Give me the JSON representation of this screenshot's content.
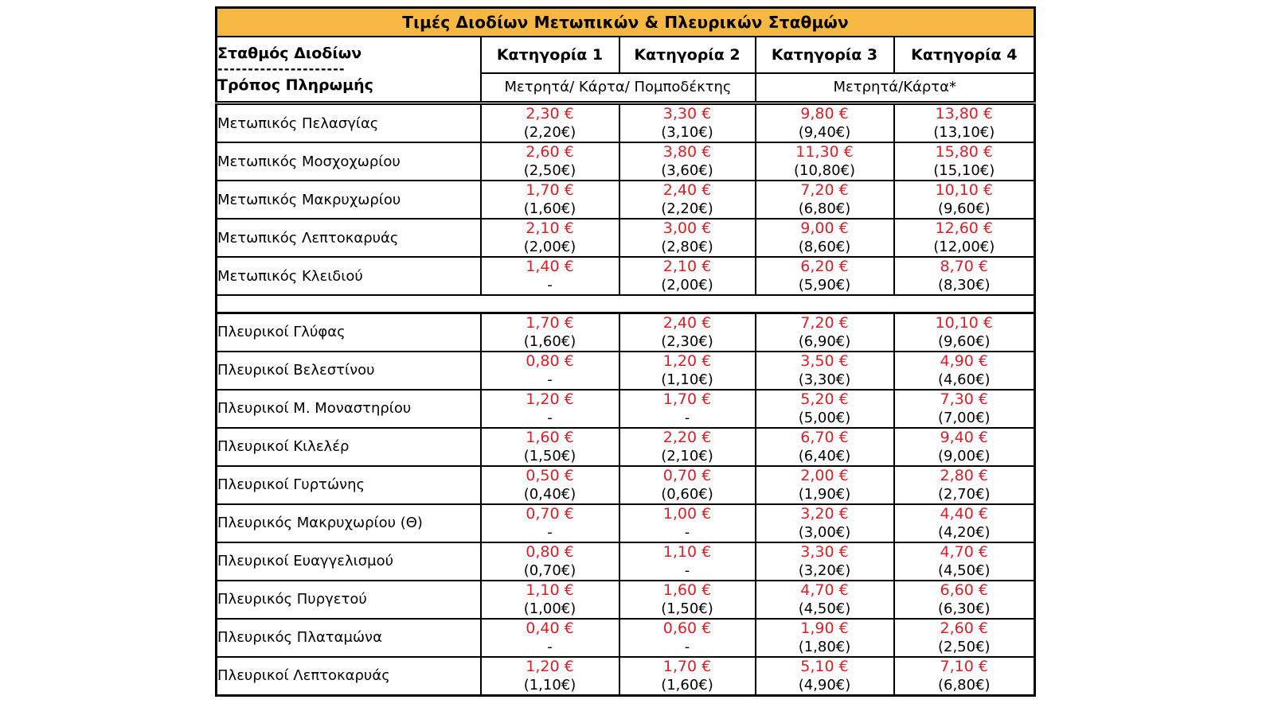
{
  "title": "Τιμές Διοδίων Μετωπικών & Πλευρικών Σταθμών",
  "header": {
    "station_label": "Σταθμός Διοδίων",
    "separator_dashes": "---------------------",
    "payment_label": "Τρόπος Πληρωμής",
    "categories": [
      "Κατηγορία 1",
      "Κατηγορία 2",
      "Κατηγορία 3",
      "Κατηγορία 4"
    ],
    "payment_method_cat12": "Μετρητά/ Κάρτα/ Πομποδέκτης",
    "payment_method_cat34": "Μετρητά/Κάρτα*"
  },
  "colors": {
    "header_bg": "#F7B843",
    "price_red": "#DC1F26",
    "border": "#000000"
  },
  "rows": [
    {
      "station": "Μετωπικός Πελασγίας",
      "cells": [
        {
          "price": "2,30 €",
          "discount": "(2,20€)"
        },
        {
          "price": "3,30 €",
          "discount": "(3,10€)"
        },
        {
          "price": "9,80 €",
          "discount": "(9,40€)"
        },
        {
          "price": "13,80 €",
          "discount": "(13,10€)"
        }
      ]
    },
    {
      "station": "Μετωπικός Μοσχοχωρίου",
      "cells": [
        {
          "price": "2,60 €",
          "discount": "(2,50€)"
        },
        {
          "price": "3,80 €",
          "discount": "(3,60€)"
        },
        {
          "price": "11,30 €",
          "discount": "(10,80€)"
        },
        {
          "price": "15,80 €",
          "discount": "(15,10€)"
        }
      ]
    },
    {
      "station": "Μετωπικός Μακρυχωρίου",
      "cells": [
        {
          "price": "1,70 €",
          "discount": "(1,60€)"
        },
        {
          "price": "2,40 €",
          "discount": "(2,20€)"
        },
        {
          "price": "7,20 €",
          "discount": "(6,80€)"
        },
        {
          "price": "10,10 €",
          "discount": "(9,60€)"
        }
      ]
    },
    {
      "station": "Μετωπικός Λεπτοκαρυάς",
      "cells": [
        {
          "price": "2,10 €",
          "discount": "(2,00€)"
        },
        {
          "price": "3,00 €",
          "discount": "(2,80€)"
        },
        {
          "price": "9,00 €",
          "discount": "(8,60€)"
        },
        {
          "price": "12,60 €",
          "discount": "(12,00€)"
        }
      ]
    },
    {
      "station": "Μετωπικός Κλειδιού",
      "cells": [
        {
          "price": "1,40 €",
          "discount": "-"
        },
        {
          "price": "2,10 €",
          "discount": "(2,00€)"
        },
        {
          "price": "6,20 €",
          "discount": "(5,90€)"
        },
        {
          "price": "8,70 €",
          "discount": "(8,30€)"
        }
      ]
    },
    {
      "separator": true
    },
    {
      "station": "Πλευρικοί Γλύφας",
      "cells": [
        {
          "price": "1,70 €",
          "discount": "(1,60€)"
        },
        {
          "price": "2,40 €",
          "discount": "(2,30€)"
        },
        {
          "price": "7,20 €",
          "discount": "(6,90€)"
        },
        {
          "price": "10,10 €",
          "discount": "(9,60€)"
        }
      ]
    },
    {
      "station": "Πλευρικοί Βελεστίνου",
      "cells": [
        {
          "price": "0,80 €",
          "discount": "-"
        },
        {
          "price": "1,20 €",
          "discount": "(1,10€)"
        },
        {
          "price": "3,50 €",
          "discount": "(3,30€)"
        },
        {
          "price": "4,90 €",
          "discount": "(4,60€)"
        }
      ]
    },
    {
      "station": "Πλευρικοί Μ. Μοναστηρίου",
      "cells": [
        {
          "price": "1,20 €",
          "discount": "-"
        },
        {
          "price": "1,70 €",
          "discount": "-"
        },
        {
          "price": "5,20 €",
          "discount": "(5,00€)"
        },
        {
          "price": "7,30 €",
          "discount": "(7,00€)"
        }
      ]
    },
    {
      "station": "Πλευρικοί Κιλελέρ",
      "cells": [
        {
          "price": "1,60 €",
          "discount": "(1,50€)"
        },
        {
          "price": "2,20 €",
          "discount": "(2,10€)"
        },
        {
          "price": "6,70 €",
          "discount": "(6,40€)"
        },
        {
          "price": "9,40 €",
          "discount": "(9,00€)"
        }
      ]
    },
    {
      "station": "Πλευρικοί Γυρτώνης",
      "cells": [
        {
          "price": "0,50 €",
          "discount": "(0,40€)"
        },
        {
          "price": "0,70 €",
          "discount": "(0,60€)"
        },
        {
          "price": "2,00 €",
          "discount": "(1,90€)"
        },
        {
          "price": "2,80 €",
          "discount": "(2,70€)"
        }
      ]
    },
    {
      "station": "Πλευρικός Μακρυχωρίου (Θ)",
      "cells": [
        {
          "price": "0,70 €",
          "discount": "-"
        },
        {
          "price": "1,00 €",
          "discount": "-"
        },
        {
          "price": "3,20 €",
          "discount": "(3,00€)"
        },
        {
          "price": "4,40 €",
          "discount": "(4,20€)"
        }
      ]
    },
    {
      "station": "Πλευρικοί Ευαγγελισμού",
      "cells": [
        {
          "price": "0,80 €",
          "discount": "(0,70€)"
        },
        {
          "price": "1,10 €",
          "discount": "-"
        },
        {
          "price": "3,30 €",
          "discount": "(3,20€)"
        },
        {
          "price": "4,70 €",
          "discount": "(4,50€)"
        }
      ]
    },
    {
      "station": "Πλευρικός Πυργετού",
      "cells": [
        {
          "price": "1,10 €",
          "discount": "(1,00€)"
        },
        {
          "price": "1,60 €",
          "discount": "(1,50€)"
        },
        {
          "price": "4,70 €",
          "discount": "(4,50€)"
        },
        {
          "price": "6,60 €",
          "discount": "(6,30€)"
        }
      ]
    },
    {
      "station": "Πλευρικός Πλαταμώνα",
      "cells": [
        {
          "price": "0,40 €",
          "discount": "-"
        },
        {
          "price": "0,60 €",
          "discount": "-"
        },
        {
          "price": "1,90 €",
          "discount": "(1,80€)"
        },
        {
          "price": "2,60 €",
          "discount": "(2,50€)"
        }
      ]
    },
    {
      "station": "Πλευρικοί Λεπτοκαρυάς",
      "cells": [
        {
          "price": "1,20 €",
          "discount": "(1,10€)"
        },
        {
          "price": "1,70 €",
          "discount": "(1,60€)"
        },
        {
          "price": "5,10 €",
          "discount": "(4,90€)"
        },
        {
          "price": "7,10 €",
          "discount": "(6,80€)"
        }
      ]
    }
  ]
}
